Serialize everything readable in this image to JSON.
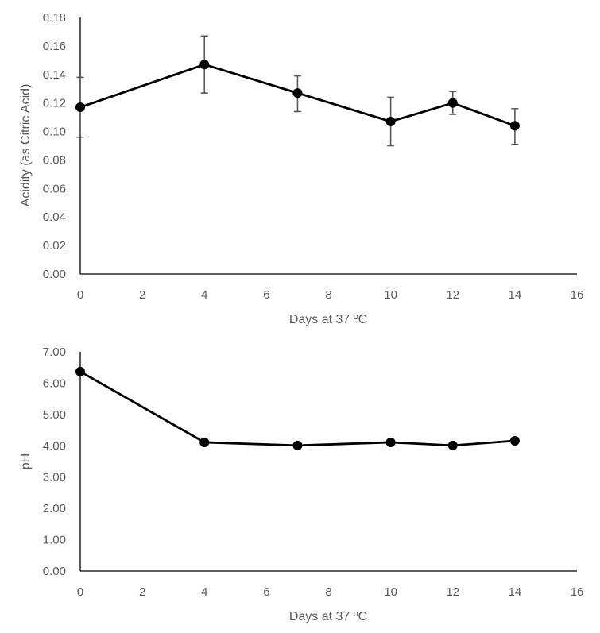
{
  "chart_data": [
    {
      "type": "line",
      "title": "",
      "xlabel": "Days at 37 ºC",
      "ylabel": "Acidity (as Citric Acid)",
      "xlim": [
        0,
        16
      ],
      "ylim": [
        0,
        0.18
      ],
      "x_ticks": [
        "0",
        "2",
        "4",
        "6",
        "8",
        "10",
        "12",
        "14",
        "16"
      ],
      "y_ticks": [
        "0.00",
        "0.02",
        "0.04",
        "0.06",
        "0.08",
        "0.10",
        "0.12",
        "0.14",
        "0.16",
        "0.18"
      ],
      "grid": false,
      "legend": "none",
      "series": [
        {
          "name": "Acidity",
          "x": [
            0,
            4,
            7,
            10,
            12,
            14
          ],
          "y": [
            0.117,
            0.147,
            0.127,
            0.107,
            0.12,
            0.104
          ],
          "error_low": [
            0.096,
            0.127,
            0.114,
            0.09,
            0.112,
            0.091
          ],
          "error_high": [
            0.138,
            0.167,
            0.139,
            0.124,
            0.128,
            0.116
          ]
        }
      ]
    },
    {
      "type": "line",
      "title": "",
      "xlabel": "Days at 37 ºC",
      "ylabel": "pH",
      "xlim": [
        0,
        16
      ],
      "ylim": [
        0,
        7
      ],
      "x_ticks": [
        "0",
        "2",
        "4",
        "6",
        "8",
        "10",
        "12",
        "14",
        "16"
      ],
      "y_ticks": [
        "0.00",
        "1.00",
        "2.00",
        "3.00",
        "4.00",
        "5.00",
        "6.00",
        "7.00"
      ],
      "grid": false,
      "legend": "none",
      "series": [
        {
          "name": "pH",
          "x": [
            0,
            4,
            7,
            10,
            12,
            14
          ],
          "y": [
            6.37,
            4.11,
            4.01,
            4.11,
            4.01,
            4.16
          ]
        }
      ]
    }
  ],
  "colors": {
    "line": "#000000",
    "marker": "#000000",
    "error_bar": "#595959",
    "axis": "#000000",
    "text": "#595959"
  }
}
